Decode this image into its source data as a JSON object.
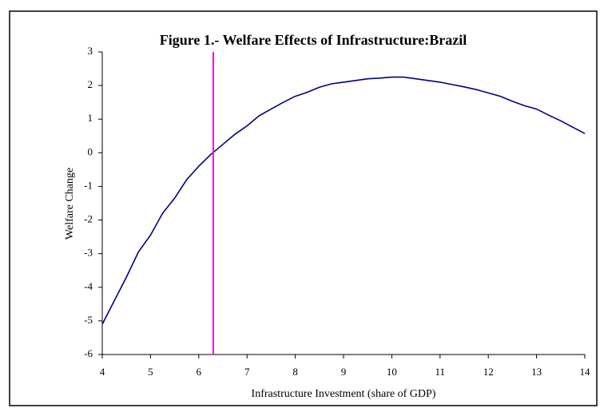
{
  "chart_data": {
    "type": "line",
    "title": "Figure 1.- Welfare Effects of Infrastructure:Brazil",
    "x_label": "Infrastructure Investment (share of GDP)",
    "y_label": "Welfare Change",
    "x": [
      4,
      4.25,
      4.5,
      4.75,
      5,
      5.25,
      5.5,
      5.75,
      6,
      6.25,
      6.5,
      6.75,
      7,
      7.25,
      7.5,
      7.75,
      8,
      8.25,
      8.5,
      8.75,
      9,
      9.25,
      9.5,
      9.75,
      10,
      10.25,
      10.5,
      10.75,
      11,
      11.25,
      11.5,
      11.75,
      12,
      12.25,
      12.5,
      12.75,
      13,
      13.25,
      13.5,
      13.75,
      14
    ],
    "series": [
      {
        "name": "Welfare Change",
        "color": "#000080",
        "values": [
          -5.1,
          -4.4,
          -3.7,
          -2.95,
          -2.45,
          -1.8,
          -1.35,
          -0.8,
          -0.4,
          -0.05,
          0.25,
          0.55,
          0.8,
          1.1,
          1.3,
          1.5,
          1.68,
          1.8,
          1.95,
          2.05,
          2.1,
          2.15,
          2.2,
          2.22,
          2.25,
          2.25,
          2.2,
          2.15,
          2.1,
          2.03,
          1.96,
          1.88,
          1.78,
          1.68,
          1.53,
          1.4,
          1.3,
          1.12,
          0.95,
          0.76,
          0.57
        ]
      }
    ],
    "vline": {
      "x": 6.3,
      "color": "#ff00ff"
    },
    "xlim": [
      4,
      14
    ],
    "xticks": [
      4,
      5,
      6,
      7,
      8,
      9,
      10,
      11,
      12,
      13,
      14
    ],
    "ylim": [
      -6,
      3
    ],
    "yticks": [
      -6,
      -5,
      -4,
      -3,
      -2,
      -1,
      0,
      1,
      2,
      3
    ]
  }
}
